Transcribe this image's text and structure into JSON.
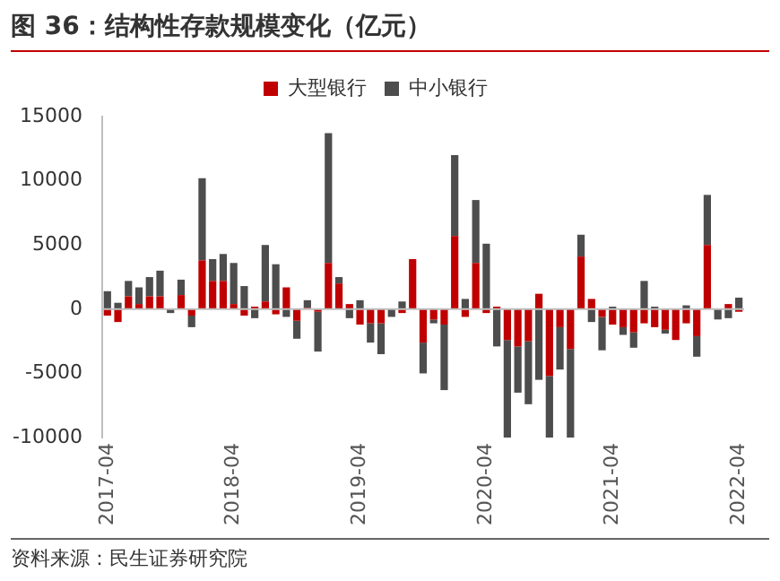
{
  "chart_data": {
    "type": "bar",
    "title": "图 36：结构性存款规模变化（亿元）",
    "categories": [
      "2017-04",
      null,
      null,
      null,
      null,
      null,
      null,
      null,
      null,
      null,
      null,
      null,
      "2018-04",
      null,
      null,
      null,
      null,
      null,
      null,
      null,
      null,
      null,
      null,
      null,
      "2019-04",
      null,
      null,
      null,
      null,
      null,
      null,
      null,
      null,
      null,
      null,
      null,
      "2020-04",
      null,
      null,
      null,
      null,
      null,
      null,
      null,
      null,
      null,
      null,
      null,
      "2021-04",
      null,
      null,
      null,
      null,
      null,
      null,
      null,
      null,
      null,
      null,
      null,
      "2022-04"
    ],
    "series": [
      {
        "name": "大型银行",
        "color": "#c00000",
        "values": [
          -500,
          -1000,
          1000,
          400,
          1000,
          1000,
          null,
          1100,
          -500,
          3800,
          2200,
          2200,
          400,
          -500,
          200,
          600,
          -400,
          1700,
          -900,
          100,
          -200,
          3600,
          2000,
          400,
          -1200,
          -1100,
          -1100,
          null,
          -300,
          3900,
          -2600,
          -800,
          -1200,
          5700,
          -600,
          3600,
          -300,
          200,
          -2400,
          -2900,
          -2500,
          1200,
          -5200,
          -1400,
          -3100,
          4100,
          800,
          -600,
          -1200,
          -1400,
          -1800,
          -1100,
          -1400,
          -1600,
          -2400,
          -1100,
          -2100,
          5000,
          null,
          400,
          -200
        ]
      },
      {
        "name": "中小银行",
        "color": "#4d4d4d",
        "values": [
          1400,
          500,
          1200,
          1300,
          1500,
          2000,
          -300,
          1200,
          -900,
          6400,
          1700,
          2100,
          3200,
          1800,
          -700,
          4400,
          3500,
          -600,
          -1400,
          600,
          -3100,
          10100,
          500,
          -700,
          700,
          -1500,
          -2400,
          -600,
          600,
          0,
          -2400,
          -300,
          -5100,
          6300,
          800,
          4900,
          5100,
          -2900,
          -7600,
          -3600,
          -4900,
          -5500,
          -4800,
          -3300,
          -6900,
          1700,
          -1000,
          -2600,
          200,
          -600,
          -1200,
          2200,
          200,
          -300,
          0,
          300,
          -1600,
          3900,
          -800,
          -700,
          900
        ]
      }
    ],
    "stacked": true,
    "ylim": [
      -10000,
      15000
    ],
    "yticks": [
      -10000,
      -5000,
      0,
      5000,
      10000,
      15000
    ],
    "grid": false,
    "legend": "top",
    "ref_lines": [
      {
        "axis": "y",
        "value": 0,
        "color": "#bfbfbf"
      }
    ],
    "annotations": [
      "资料来源：民生证券研究院"
    ]
  }
}
